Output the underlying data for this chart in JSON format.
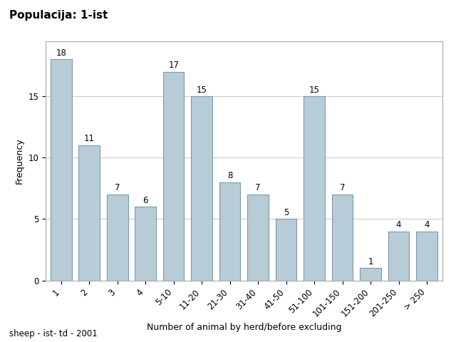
{
  "title": "Populacija: 1-ist",
  "subtitle": "sheep - ist- td - 2001",
  "xlabel": "Number of animal by herd/before excluding",
  "ylabel": "Frequency",
  "categories": [
    "1",
    "2",
    "3",
    "4",
    "5-10",
    "11-20",
    "21-30",
    "31-40",
    "41-50",
    "51-100",
    "101-150",
    "151-200",
    "201-250",
    "> 250"
  ],
  "values": [
    18,
    11,
    7,
    6,
    17,
    15,
    8,
    7,
    5,
    15,
    7,
    1,
    4,
    4
  ],
  "bar_color": "#b8ccd8",
  "bar_edge_color": "#7a9aaa",
  "ylim": [
    0,
    19.5
  ],
  "yticks": [
    0,
    5,
    10,
    15
  ],
  "background_color": "#ffffff",
  "plot_bg_color": "#ffffff",
  "grid_color": "#cccccc",
  "title_fontsize": 11,
  "axis_label_fontsize": 9,
  "tick_fontsize": 8.5,
  "annotation_fontsize": 8.5,
  "subtitle_fontsize": 8.5,
  "tick_rotation": 45
}
